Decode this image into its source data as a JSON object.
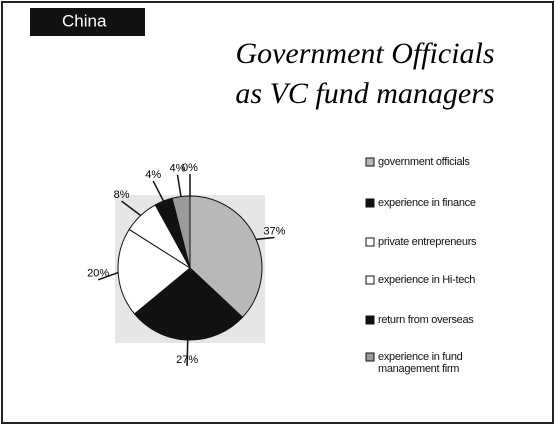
{
  "chart_data": {
    "type": "pie",
    "badge": "China",
    "title_lines": [
      "Government Officials",
      "as VC fund managers"
    ],
    "categories": [
      "government officials",
      "experience in finance",
      "private entrepreneurs",
      "experience in Hi-tech",
      "return from overseas",
      "experience in fund management firm",
      null
    ],
    "values": [
      37,
      27,
      20,
      8,
      4,
      4,
      0
    ],
    "value_labels": [
      "37%",
      "27%",
      "20%",
      "8%",
      "4%",
      "4%",
      "0%"
    ],
    "colors": [
      "#b8b8b8",
      "#111111",
      "#ffffff",
      "#ffffff",
      "#111111",
      "#9a9a9a",
      "#dddddd"
    ]
  }
}
